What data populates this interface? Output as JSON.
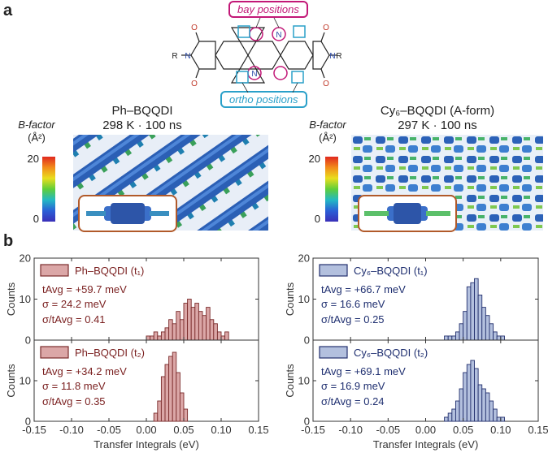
{
  "panel_a": {
    "letter": "a",
    "bay_label": "bay positions",
    "ortho_label": "ortho positions",
    "mol_atoms": {
      "o": "O",
      "n": "N",
      "r": "R"
    },
    "left": {
      "title": "Ph–BQQDI",
      "condition": "298 K · 100 ns"
    },
    "right": {
      "title": "Cy₆–BQQDI (A-form)",
      "condition": "297 K · 100 ns"
    },
    "bfactor": {
      "label_line1": "B-factor",
      "label_line2": "(Å²)",
      "max_tick": "20",
      "min_tick": "0"
    },
    "colors": {
      "bay": "#c21877",
      "ortho": "#2aa0c9",
      "inset_border": "#b15a2a"
    }
  },
  "panel_b": {
    "letter": "b",
    "xlabel": "Transfer Integrals (eV)",
    "ylabel": "Counts",
    "legends": {
      "ph_t1": "Ph–BQQDI (t₁)",
      "ph_t2": "Ph–BQQDI (t₂)",
      "cy_t1": "Cy₆–BQQDI (t₁)",
      "cy_t2": "Cy₆–BQQDI (t₂)"
    }
  },
  "chart_data": [
    {
      "id": "ph_t1",
      "type": "bar",
      "series_name": "Ph–BQQDI (t1)",
      "color_fill": "#dba7a7",
      "color_edge": "#7a2b2b",
      "text_color": "#7a1f1f",
      "stats": {
        "tavg": "tAvg = +59.7 meV",
        "sigma": "σ = 24.2 meV",
        "ratio": "σ/tAvg = 0.41"
      },
      "bin_width": 0.005,
      "bin_centers": [
        0.0025,
        0.0075,
        0.0125,
        0.0175,
        0.0225,
        0.0275,
        0.0325,
        0.0375,
        0.0425,
        0.0475,
        0.0525,
        0.0575,
        0.0625,
        0.0675,
        0.0725,
        0.0775,
        0.0825,
        0.0875,
        0.0925,
        0.0975,
        0.1025,
        0.1075
      ],
      "values": [
        1,
        1,
        2,
        1,
        2,
        3,
        5,
        4,
        7,
        5,
        9,
        10,
        8,
        9,
        7,
        6,
        8,
        5,
        4,
        2,
        1,
        2
      ],
      "xlim": [
        -0.15,
        0.15
      ],
      "ylim": [
        0,
        20
      ],
      "yticks": [
        0,
        10,
        20
      ],
      "xticks": [
        "-0.15",
        "-0.10",
        "-0.05",
        "0.00",
        "0.05",
        "0.10",
        "0.15"
      ],
      "xlabel": "",
      "ylabel": "Counts"
    },
    {
      "id": "ph_t2",
      "type": "bar",
      "series_name": "Ph–BQQDI (t2)",
      "color_fill": "#dba7a7",
      "color_edge": "#7a2b2b",
      "text_color": "#7a1f1f",
      "stats": {
        "tavg": "tAvg = +34.2 meV",
        "sigma": "σ = 11.8 meV",
        "ratio": "σ/tAvg = 0.35"
      },
      "bin_width": 0.005,
      "bin_centers": [
        0.0125,
        0.0175,
        0.0225,
        0.0275,
        0.0325,
        0.0375,
        0.0425,
        0.0475,
        0.0525
      ],
      "values": [
        2,
        5,
        11,
        14,
        16,
        17,
        12,
        7,
        3
      ],
      "xlim": [
        -0.15,
        0.15
      ],
      "ylim": [
        0,
        20
      ],
      "yticks": [
        0,
        10,
        20
      ],
      "xticks": [
        "-0.15",
        "-0.10",
        "-0.05",
        "0.00",
        "0.05",
        "0.10",
        "0.15"
      ],
      "xlabel": "Transfer Integrals (eV)",
      "ylabel": "Counts"
    },
    {
      "id": "cy_t1",
      "type": "bar",
      "series_name": "Cy6–BQQDI (t1)",
      "color_fill": "#b3c0de",
      "color_edge": "#23306e",
      "text_color": "#1f2f70",
      "stats": {
        "tavg": "tAvg = +66.7 meV",
        "sigma": "σ = 16.6 meV",
        "ratio": "σ/tAvg = 0.25"
      },
      "bin_width": 0.005,
      "bin_centers": [
        0.0275,
        0.0325,
        0.0375,
        0.0425,
        0.0475,
        0.0525,
        0.0575,
        0.0625,
        0.0675,
        0.0725,
        0.0775,
        0.0825,
        0.0875,
        0.0925,
        0.0975,
        0.1025
      ],
      "values": [
        1,
        1,
        1,
        2,
        4,
        7,
        13,
        14,
        15,
        11,
        8,
        6,
        4,
        2,
        1,
        1
      ],
      "xlim": [
        -0.15,
        0.15
      ],
      "ylim": [
        0,
        20
      ],
      "yticks": [
        0,
        10,
        20
      ],
      "xticks": [
        "-0.15",
        "-0.10",
        "-0.05",
        "0.00",
        "0.05",
        "0.10",
        "0.15"
      ],
      "xlabel": "",
      "ylabel": "Counts"
    },
    {
      "id": "cy_t2",
      "type": "bar",
      "series_name": "Cy6–BQQDI (t2)",
      "color_fill": "#b3c0de",
      "color_edge": "#23306e",
      "text_color": "#1f2f70",
      "stats": {
        "tavg": "tAvg = +69.1 meV",
        "sigma": "σ = 16.9 meV",
        "ratio": "σ/tAvg = 0.24"
      },
      "bin_width": 0.005,
      "bin_centers": [
        0.0275,
        0.0325,
        0.0375,
        0.0425,
        0.0475,
        0.0525,
        0.0575,
        0.0625,
        0.0675,
        0.0725,
        0.0775,
        0.0825,
        0.0875,
        0.0925,
        0.0975,
        0.1025
      ],
      "values": [
        1,
        2,
        3,
        5,
        8,
        12,
        14,
        15,
        13,
        9,
        8,
        7,
        5,
        3,
        1,
        1
      ],
      "xlim": [
        -0.15,
        0.15
      ],
      "ylim": [
        0,
        20
      ],
      "yticks": [
        0,
        10,
        20
      ],
      "xticks": [
        "-0.15",
        "-0.10",
        "-0.05",
        "0.00",
        "0.05",
        "0.10",
        "0.15"
      ],
      "xlabel": "Transfer Integrals (eV)",
      "ylabel": "Counts"
    }
  ]
}
